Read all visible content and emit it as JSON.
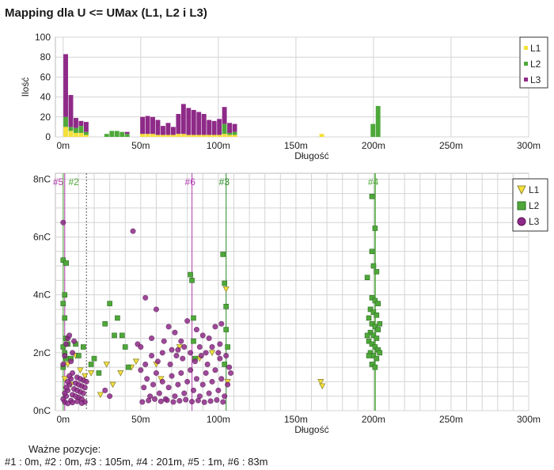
{
  "title": "Mapping dla U <= UMax (L1, L2 i L3)",
  "colors": {
    "L1": "#f5e03a",
    "L2": "#4fa83a",
    "L3": "#8e2a88",
    "L1_stroke": "#8f8a3a",
    "L2_stroke": "#2f6e24",
    "L3_stroke": "#5a1656",
    "grid": "#d4d4d4"
  },
  "chart_data": [
    {
      "type": "bar",
      "stacked": true,
      "xlabel": "Długość",
      "ylabel": "Ilość",
      "xlim": [
        -5,
        300
      ],
      "ylim": [
        0,
        100
      ],
      "xticks": [
        "0m",
        "50m",
        "100m",
        "150m",
        "200m",
        "250m",
        "300m"
      ],
      "yticks": [
        "0",
        "20",
        "40",
        "60",
        "80",
        "100"
      ],
      "grid": true,
      "legend_position": "right",
      "bin_width": 3.3,
      "x": [
        0,
        3.3,
        6.6,
        9.9,
        13.2,
        26.4,
        29.7,
        33,
        36.3,
        39.6,
        49.5,
        52.8,
        56.1,
        59.4,
        62.7,
        66,
        69.3,
        72.6,
        75.9,
        79.2,
        82.5,
        85.8,
        89.1,
        92.4,
        95.7,
        99,
        102.3,
        105.6,
        108.9,
        165,
        198,
        201.3
      ],
      "series": [
        {
          "name": "L1",
          "values": [
            10,
            6,
            4,
            4,
            2,
            0,
            0,
            0,
            0,
            0,
            3,
            3,
            3,
            2,
            2,
            2,
            2,
            3,
            3,
            2,
            2,
            2,
            2,
            2,
            2,
            2,
            3,
            2,
            2,
            3,
            0,
            0
          ]
        },
        {
          "name": "L2",
          "values": [
            10,
            4,
            5,
            7,
            3,
            3,
            6,
            6,
            5,
            3,
            0,
            0,
            0,
            0,
            0,
            0,
            0,
            0,
            0,
            0,
            0,
            0,
            0,
            0,
            0,
            0,
            10,
            2,
            3,
            0,
            13,
            31
          ]
        },
        {
          "name": "L3",
          "values": [
            63,
            32,
            10,
            5,
            10,
            0,
            0,
            0,
            0,
            2,
            17,
            18,
            17,
            15,
            9,
            12,
            8,
            20,
            30,
            27,
            25,
            23,
            21,
            15,
            14,
            16,
            17,
            10,
            8,
            0,
            0,
            0
          ]
        }
      ]
    },
    {
      "type": "scatter",
      "xlabel": "Długość",
      "ylabel": "",
      "xlim": [
        -5,
        300
      ],
      "ylim": [
        0,
        8.2
      ],
      "xticks": [
        "0m",
        "50m",
        "100m",
        "150m",
        "200m",
        "250m",
        "300m"
      ],
      "yticks": [
        "0nC",
        "2nC",
        "4nC",
        "6nC",
        "8nC"
      ],
      "grid": true,
      "legend_position": "top-right",
      "series": [
        {
          "name": "L1",
          "marker": "triangle",
          "points": [
            [
              1,
              1.1
            ],
            [
              3,
              1.6
            ],
            [
              5,
              0.9
            ],
            [
              8,
              1.9
            ],
            [
              11,
              1.4
            ],
            [
              14,
              1.2
            ],
            [
              18,
              1.3
            ],
            [
              24,
              0.55
            ],
            [
              28,
              1.6
            ],
            [
              32,
              0.9
            ],
            [
              37,
              1.3
            ],
            [
              44,
              1.5
            ],
            [
              47,
              1.7
            ],
            [
              60,
              1.6
            ],
            [
              63,
              1.1
            ],
            [
              75,
              2.2
            ],
            [
              88,
              1.8
            ],
            [
              96,
              2.0
            ],
            [
              105,
              4.2
            ],
            [
              106,
              1.0
            ],
            [
              166,
              1.0
            ],
            [
              167,
              0.85
            ]
          ]
        },
        {
          "name": "L2",
          "marker": "square",
          "points": [
            [
              0,
              5.2
            ],
            [
              1,
              4.0
            ],
            [
              2,
              5.1
            ],
            [
              0,
              3.7
            ],
            [
              1,
              3.2
            ],
            [
              2,
              2.5
            ],
            [
              0,
              2.2
            ],
            [
              1,
              2.0
            ],
            [
              2,
              1.8
            ],
            [
              0,
              1.5
            ],
            [
              3,
              2.3
            ],
            [
              5,
              1.8
            ],
            [
              8,
              2.3
            ],
            [
              10,
              1.9
            ],
            [
              13,
              2.2
            ],
            [
              18,
              1.6
            ],
            [
              20,
              1.8
            ],
            [
              23,
              1.3
            ],
            [
              27,
              3.0
            ],
            [
              30,
              3.7
            ],
            [
              33,
              2.6
            ],
            [
              35,
              3.2
            ],
            [
              38,
              2.6
            ],
            [
              40,
              2.2
            ],
            [
              42,
              1.5
            ],
            [
              82,
              4.7
            ],
            [
              83,
              4.5
            ],
            [
              84,
              3.2
            ],
            [
              84,
              2.4
            ],
            [
              85,
              1.8
            ],
            [
              103,
              5.4
            ],
            [
              104,
              4.4
            ],
            [
              105,
              3.6
            ],
            [
              105,
              2.8
            ],
            [
              106,
              2.2
            ],
            [
              104,
              1.6
            ],
            [
              199,
              7.4
            ],
            [
              201,
              6.3
            ],
            [
              199,
              5.5
            ],
            [
              200,
              5.0
            ],
            [
              202,
              4.8
            ],
            [
              196,
              4.6
            ],
            [
              199,
              3.9
            ],
            [
              201,
              3.8
            ],
            [
              203,
              3.7
            ],
            [
              198,
              3.5
            ],
            [
              200,
              3.4
            ],
            [
              202,
              3.3
            ],
            [
              197,
              3.2
            ],
            [
              199,
              3.0
            ],
            [
              201,
              2.9
            ],
            [
              203,
              2.8
            ],
            [
              198,
              2.7
            ],
            [
              200,
              2.6
            ],
            [
              202,
              2.5
            ],
            [
              197,
              2.4
            ],
            [
              199,
              2.3
            ],
            [
              201,
              2.2
            ],
            [
              203,
              2.1
            ],
            [
              198,
              2.0
            ],
            [
              200,
              1.9
            ],
            [
              202,
              1.8
            ],
            [
              199,
              1.6
            ],
            [
              201,
              1.5
            ],
            [
              196,
              2.6
            ],
            [
              204,
              3.0
            ],
            [
              204,
              2.0
            ],
            [
              197,
              1.9
            ]
          ]
        },
        {
          "name": "L3",
          "points": [
            [
              0,
              6.5
            ],
            [
              1,
              0.3
            ],
            [
              2,
              0.5
            ],
            [
              3,
              0.7
            ],
            [
              4,
              0.9
            ],
            [
              5,
              1.1
            ],
            [
              6,
              1.3
            ],
            [
              0,
              0.4
            ],
            [
              1,
              0.6
            ],
            [
              2,
              0.8
            ],
            [
              3,
              1.0
            ],
            [
              4,
              1.2
            ],
            [
              5,
              0.35
            ],
            [
              6,
              0.55
            ],
            [
              7,
              0.75
            ],
            [
              8,
              0.95
            ],
            [
              9,
              1.15
            ],
            [
              10,
              0.45
            ],
            [
              11,
              0.65
            ],
            [
              12,
              0.85
            ],
            [
              13,
              1.05
            ],
            [
              14,
              0.3
            ],
            [
              0,
              1.6
            ],
            [
              1,
              1.9
            ],
            [
              2,
              2.3
            ],
            [
              3,
              2.5
            ],
            [
              4,
              2.6
            ],
            [
              5,
              1.7
            ],
            [
              6,
              2.0
            ],
            [
              7,
              2.4
            ],
            [
              8,
              0.5
            ],
            [
              9,
              0.7
            ],
            [
              10,
              0.9
            ],
            [
              11,
              1.1
            ],
            [
              12,
              0.4
            ],
            [
              13,
              0.6
            ],
            [
              14,
              0.8
            ],
            [
              15,
              1.0
            ],
            [
              3,
              0.25
            ],
            [
              6,
              0.28
            ],
            [
              9,
              0.32
            ],
            [
              12,
              0.26
            ],
            [
              45,
              6.2
            ],
            [
              53,
              3.9
            ],
            [
              60,
              3.5
            ],
            [
              48,
              2.3
            ],
            [
              50,
              2.2
            ],
            [
              57,
              2.5
            ],
            [
              64,
              2.0
            ],
            [
              68,
              2.9
            ],
            [
              72,
              2.7
            ],
            [
              76,
              2.4
            ],
            [
              80,
              3.1
            ],
            [
              86,
              2.8
            ],
            [
              90,
              2.6
            ],
            [
              94,
              2.5
            ],
            [
              98,
              2.9
            ],
            [
              101,
              2.3
            ],
            [
              102,
              3.0
            ],
            [
              65,
              2.4
            ],
            [
              70,
              2.1
            ],
            [
              74,
              2.1
            ],
            [
              78,
              2.2
            ],
            [
              82,
              2.0
            ],
            [
              88,
              2.2
            ],
            [
              92,
              2.0
            ],
            [
              96,
              2.2
            ],
            [
              100,
              2.0
            ],
            [
              50,
              1.4
            ],
            [
              52,
              0.8
            ],
            [
              54,
              1.1
            ],
            [
              56,
              0.5
            ],
            [
              58,
              0.9
            ],
            [
              60,
              1.3
            ],
            [
              62,
              0.6
            ],
            [
              64,
              1.0
            ],
            [
              66,
              0.4
            ],
            [
              68,
              0.8
            ],
            [
              70,
              1.2
            ],
            [
              72,
              0.5
            ],
            [
              74,
              0.9
            ],
            [
              76,
              1.3
            ],
            [
              78,
              0.6
            ],
            [
              80,
              1.0
            ],
            [
              82,
              1.4
            ],
            [
              84,
              0.7
            ],
            [
              86,
              1.1
            ],
            [
              88,
              0.5
            ],
            [
              90,
              0.9
            ],
            [
              92,
              1.3
            ],
            [
              94,
              0.6
            ],
            [
              96,
              1.0
            ],
            [
              98,
              1.4
            ],
            [
              100,
              0.7
            ],
            [
              102,
              1.1
            ],
            [
              104,
              0.5
            ],
            [
              106,
              0.9
            ],
            [
              108,
              1.3
            ],
            [
              51,
              0.3
            ],
            [
              55,
              0.35
            ],
            [
              59,
              0.4
            ],
            [
              63,
              0.32
            ],
            [
              67,
              0.36
            ],
            [
              71,
              0.3
            ],
            [
              75,
              0.34
            ],
            [
              79,
              0.38
            ],
            [
              83,
              0.31
            ],
            [
              87,
              0.35
            ],
            [
              91,
              0.29
            ],
            [
              95,
              0.33
            ],
            [
              99,
              0.37
            ],
            [
              103,
              0.3
            ],
            [
              53,
              1.6
            ],
            [
              61,
              1.7
            ],
            [
              69,
              1.6
            ],
            [
              77,
              1.8
            ],
            [
              85,
              1.7
            ],
            [
              93,
              1.6
            ],
            [
              101,
              1.8
            ],
            [
              107,
              1.5
            ],
            [
              57,
              1.9
            ],
            [
              73,
              1.9
            ],
            [
              89,
              1.9
            ],
            [
              105,
              1.9
            ],
            [
              27,
              0.7
            ],
            [
              30,
              0.5
            ]
          ]
        }
      ],
      "markers": [
        {
          "label": "#5",
          "x": 1,
          "color": "#b23cb0"
        },
        {
          "label": "#2",
          "x": 0,
          "color": "#4fa83a"
        },
        {
          "label": "#6",
          "x": 83,
          "color": "#b23cb0"
        },
        {
          "label": "#3",
          "x": 105,
          "color": "#2f8a2a"
        },
        {
          "label": "#4",
          "x": 201,
          "color": "#4fa83a"
        }
      ]
    }
  ],
  "notes": {
    "heading": "Ważne pozycje:",
    "text": "#1 : 0m, #2 : 0m, #3 : 105m, #4 : 201m, #5 : 1m, #6 : 83m"
  }
}
